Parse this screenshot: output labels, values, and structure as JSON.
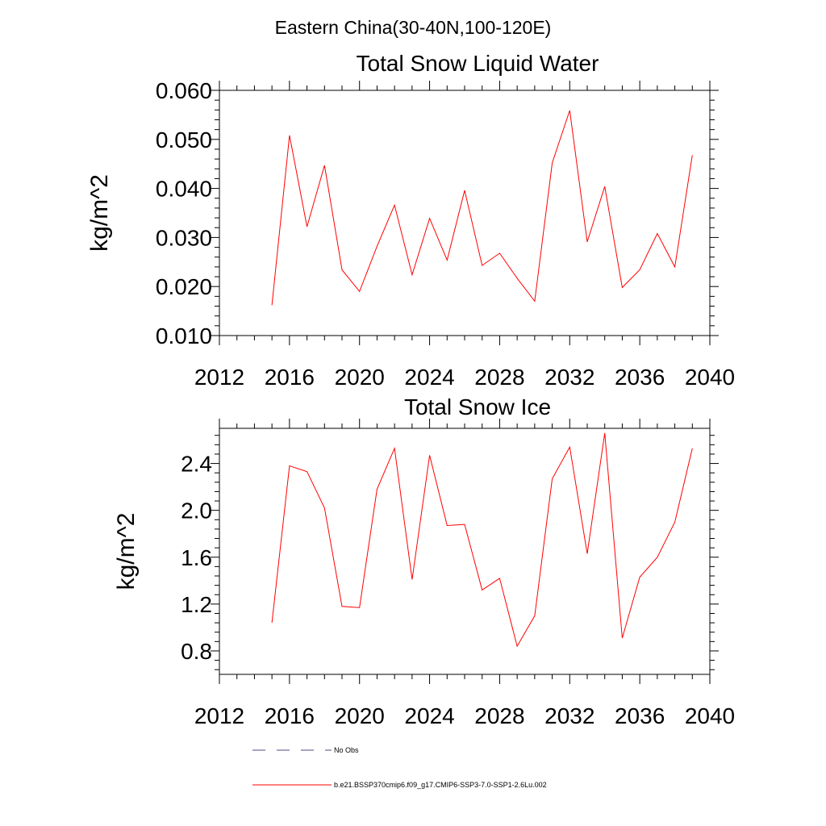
{
  "figure": {
    "title": "Eastern China(30-40N,100-120E)"
  },
  "legend": [
    {
      "label": "No Obs",
      "style": "dashed",
      "color": "#4a4a8a"
    },
    {
      "label": "b.e21.BSSP370cmip6.f09_g17.CMIP6-SSP3-7.0-SSP1-2.6Lu.002",
      "style": "solid",
      "color": "#ff0000"
    }
  ],
  "chart_data": [
    {
      "type": "line",
      "title": "Total Snow Liquid Water",
      "xlabel": "",
      "ylabel": "kg/m^2",
      "xlim": [
        2012,
        2040
      ],
      "ylim": [
        0.01,
        0.06
      ],
      "xticks": [
        2012,
        2016,
        2020,
        2024,
        2028,
        2032,
        2036,
        2040
      ],
      "xtick_labels": [
        "2012",
        "2016",
        "2020",
        "2024",
        "2028",
        "2032",
        "2036",
        "2040"
      ],
      "yticks": [
        0.01,
        0.02,
        0.03,
        0.04,
        0.05,
        0.06
      ],
      "ytick_labels": [
        "0.010",
        "0.020",
        "0.030",
        "0.040",
        "0.050",
        "0.060"
      ],
      "grid": false,
      "series": [
        {
          "color": "#ff0000",
          "x": [
            2015,
            2016,
            2017,
            2018,
            2019,
            2020,
            2021,
            2022,
            2023,
            2024,
            2025,
            2026,
            2027,
            2028,
            2029,
            2030,
            2031,
            2032,
            2033,
            2034,
            2035,
            2036,
            2037,
            2038,
            2039
          ],
          "values": [
            0.0162,
            0.0508,
            0.0322,
            0.0447,
            0.0234,
            0.019,
            0.0282,
            0.0366,
            0.0224,
            0.0339,
            0.0254,
            0.0396,
            0.0243,
            0.0268,
            0.0217,
            0.017,
            0.0452,
            0.0559,
            0.0291,
            0.0404,
            0.0198,
            0.0234,
            0.0308,
            0.024,
            0.0468
          ]
        }
      ]
    },
    {
      "type": "line",
      "title": "Total Snow Ice",
      "xlabel": "",
      "ylabel": "kg/m^2",
      "xlim": [
        2012,
        2040
      ],
      "ylim": [
        0.6,
        2.7
      ],
      "xticks": [
        2012,
        2016,
        2020,
        2024,
        2028,
        2032,
        2036,
        2040
      ],
      "xtick_labels": [
        "2012",
        "2016",
        "2020",
        "2024",
        "2028",
        "2032",
        "2036",
        "2040"
      ],
      "yticks": [
        0.8,
        1.2,
        1.6,
        2.0,
        2.4
      ],
      "ytick_labels": [
        "0.8",
        "1.2",
        "1.6",
        "2.0",
        "2.4"
      ],
      "grid": false,
      "series": [
        {
          "color": "#ff0000",
          "x": [
            2015,
            2016,
            2017,
            2018,
            2019,
            2020,
            2021,
            2022,
            2023,
            2024,
            2025,
            2026,
            2027,
            2028,
            2029,
            2030,
            2031,
            2032,
            2033,
            2034,
            2035,
            2036,
            2037,
            2038,
            2039
          ],
          "values": [
            1.04,
            2.38,
            2.33,
            2.02,
            1.18,
            1.17,
            2.18,
            2.53,
            1.41,
            2.47,
            1.87,
            1.88,
            1.32,
            1.42,
            0.84,
            1.1,
            2.27,
            2.54,
            1.63,
            2.66,
            0.91,
            1.43,
            1.6,
            1.9,
            2.53
          ]
        }
      ]
    }
  ]
}
